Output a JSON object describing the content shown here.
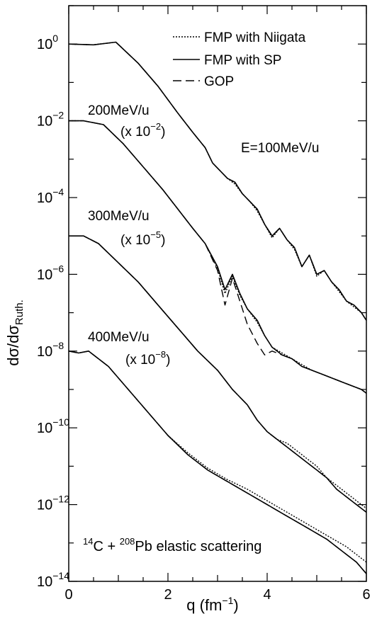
{
  "chart_data": {
    "type": "line",
    "xlabel": "q (fm",
    "xlabel_sup": "−1",
    "xlabel_tail": ")",
    "ylabel_main": "dσ/dσ",
    "ylabel_sub": "Ruth.",
    "xlim": [
      0,
      6
    ],
    "ylim_exp": [
      -14,
      1
    ],
    "y_scale": "log",
    "x_ticks": [
      0,
      2,
      4,
      6
    ],
    "x_tick_labels": [
      "0",
      "2",
      "4",
      "6"
    ],
    "y_ticks_exp": [
      0,
      -2,
      -4,
      -6,
      -8,
      -10,
      -12,
      -14
    ],
    "y_tick_base": "10",
    "y_tick_sups": [
      "0",
      "−2",
      "−4",
      "−6",
      "−8",
      "−10",
      "−12",
      "−14"
    ],
    "legend": {
      "placement": "top-right",
      "entries": [
        {
          "label": "FMP with Niigata",
          "style": "dotted"
        },
        {
          "label": "FMP with SP",
          "style": "solid"
        },
        {
          "label": "GOP",
          "style": "dashed"
        }
      ]
    },
    "annotations": {
      "energy_main": "E=100MeV/u",
      "title_a": "14",
      "title_b": "C + ",
      "title_c": "208",
      "title_d": "Pb elastic scattering",
      "curve_labels": [
        {
          "energy": "200MeV/u",
          "scale_pre": "(x 10",
          "scale_sup": "−2",
          "scale_post": ")"
        },
        {
          "energy": "300MeV/u",
          "scale_pre": "(x 10",
          "scale_sup": "−5",
          "scale_post": ")"
        },
        {
          "energy": "400MeV/u",
          "scale_pre": "(x 10",
          "scale_sup": "−8",
          "scale_post": ")"
        }
      ]
    },
    "series": [
      {
        "energy": "100MeV/u",
        "x": [
          0,
          0.5,
          0.95,
          1.4,
          1.8,
          2.2,
          2.5,
          2.75,
          2.9,
          3.05,
          3.2,
          3.35,
          3.5,
          3.65,
          3.8,
          3.95,
          4.1,
          4.25,
          4.4,
          4.55,
          4.7,
          4.85,
          5.0,
          5.15,
          5.3,
          5.45,
          5.6,
          5.75,
          5.9,
          6.0
        ],
        "solid": [
          0,
          -0.02,
          0.05,
          -0.5,
          -1.1,
          -1.8,
          -2.3,
          -2.7,
          -3.1,
          -3.3,
          -3.5,
          -3.6,
          -3.9,
          -4.1,
          -4.3,
          -4.7,
          -5.0,
          -4.8,
          -5.1,
          -5.3,
          -5.8,
          -5.5,
          -6.0,
          -5.9,
          -6.2,
          -6.4,
          -6.7,
          -6.8,
          -7.0,
          -7.2
        ],
        "dotted": [
          0,
          -0.02,
          0.05,
          -0.5,
          -1.1,
          -1.8,
          -2.3,
          -2.7,
          -3.1,
          -3.3,
          -3.5,
          -3.65,
          -3.9,
          -4.1,
          -4.35,
          -4.7,
          -5.05,
          -4.8,
          -5.1,
          -5.35,
          -5.8,
          -5.5,
          -6.05,
          -5.9,
          -6.2,
          -6.45,
          -6.7,
          -6.85,
          -7.0,
          -7.2
        ],
        "dashed": [
          0,
          -0.02,
          0.05,
          -0.5,
          -1.1,
          -1.8,
          -2.3,
          -2.7,
          -3.1,
          -3.3,
          -3.5,
          -3.6,
          -3.9,
          -4.1,
          -4.3,
          -4.7,
          -5.0,
          -4.8,
          -5.1,
          -5.3,
          -5.8,
          -5.5,
          -6.0,
          -5.9,
          -6.2,
          -6.4,
          -6.7,
          -6.8,
          -7.0,
          -7.2
        ]
      },
      {
        "energy": "200MeV/u",
        "x": [
          0,
          0.3,
          0.7,
          1.1,
          1.5,
          1.9,
          2.2,
          2.5,
          2.75,
          3.0,
          3.15,
          3.3,
          3.45,
          3.6,
          3.8,
          3.95,
          4.1,
          4.3,
          4.5,
          4.7,
          4.9,
          5.1,
          5.3,
          5.5,
          5.7,
          5.9,
          6.0
        ],
        "solid": [
          -2.0,
          -2.0,
          -2.1,
          -2.6,
          -3.2,
          -3.8,
          -4.3,
          -4.8,
          -5.2,
          -5.8,
          -6.4,
          -6.0,
          -6.5,
          -6.9,
          -7.2,
          -7.6,
          -7.9,
          -8.1,
          -8.2,
          -8.4,
          -8.5,
          -8.6,
          -8.7,
          -8.8,
          -8.9,
          -9.0,
          -9.1
        ],
        "dotted": [
          -2.0,
          -2.0,
          -2.1,
          -2.6,
          -3.2,
          -3.8,
          -4.3,
          -4.8,
          -5.2,
          -5.85,
          -6.5,
          -6.05,
          -6.55,
          -6.9,
          -7.25,
          -7.6,
          -7.9,
          -8.05,
          -8.2,
          -8.35,
          -8.5,
          -8.6,
          -8.7,
          -8.8,
          -8.9,
          -9.0,
          -9.1
        ],
        "dashed": [
          -2.0,
          -2.0,
          -2.1,
          -2.6,
          -3.2,
          -3.8,
          -4.3,
          -4.8,
          -5.2,
          -5.9,
          -6.8,
          -6.1,
          -6.7,
          -7.3,
          -7.8,
          -8.1,
          -8.0,
          -8.1,
          -8.2,
          -8.4,
          -8.5,
          -8.6,
          -8.7,
          -8.8,
          -8.9,
          -9.0,
          -9.1
        ]
      },
      {
        "energy": "300MeV/u",
        "x": [
          0,
          0.3,
          0.6,
          1.0,
          1.4,
          1.8,
          2.2,
          2.6,
          3.0,
          3.3,
          3.6,
          3.8,
          4.0,
          4.2,
          4.4,
          4.6,
          4.8,
          5.0,
          5.2,
          5.4,
          5.6,
          5.8,
          6.0
        ],
        "solid": [
          -5.0,
          -5.0,
          -5.2,
          -5.7,
          -6.2,
          -6.8,
          -7.4,
          -8.0,
          -8.5,
          -9.0,
          -9.4,
          -9.8,
          -10.1,
          -10.3,
          -10.5,
          -10.7,
          -10.9,
          -11.1,
          -11.3,
          -11.6,
          -11.8,
          -12.0,
          -12.2
        ],
        "dotted": [
          -5.0,
          -5.0,
          -5.2,
          -5.7,
          -6.2,
          -6.8,
          -7.4,
          -8.0,
          -8.5,
          -9.0,
          -9.4,
          -9.8,
          -10.1,
          -10.3,
          -10.4,
          -10.6,
          -10.8,
          -11.0,
          -11.3,
          -11.5,
          -11.7,
          -11.9,
          -12.1
        ],
        "dashed": [
          -5.0,
          -5.0,
          -5.2,
          -5.7,
          -6.2,
          -6.8,
          -7.4,
          -8.0,
          -8.5,
          -9.0,
          -9.4,
          -9.8,
          -10.1,
          -10.3,
          -10.5,
          -10.7,
          -10.9,
          -11.1,
          -11.3,
          -11.6,
          -11.8,
          -12.0,
          -12.2
        ]
      },
      {
        "energy": "400MeV/u",
        "x": [
          0,
          0.2,
          0.4,
          0.8,
          1.2,
          1.6,
          2.0,
          2.4,
          2.8,
          3.2,
          3.6,
          4.0,
          4.4,
          4.8,
          5.2,
          5.6,
          5.8,
          6.0
        ],
        "solid": [
          -8.0,
          -8.05,
          -8.0,
          -8.4,
          -9.0,
          -9.6,
          -10.2,
          -10.7,
          -11.1,
          -11.4,
          -11.7,
          -12.0,
          -12.3,
          -12.6,
          -12.9,
          -13.3,
          -13.5,
          -13.8
        ],
        "dotted": [
          -8.0,
          -8.05,
          -8.0,
          -8.4,
          -9.0,
          -9.6,
          -10.2,
          -10.65,
          -11.05,
          -11.35,
          -11.6,
          -11.9,
          -12.2,
          -12.5,
          -12.8,
          -13.1,
          -13.3,
          -13.5
        ],
        "dashed": [
          -8.0,
          -8.05,
          -8.0,
          -8.4,
          -9.0,
          -9.6,
          -10.2,
          -10.7,
          -11.1,
          -11.4,
          -11.7,
          -12.0,
          -12.3,
          -12.6,
          -12.9,
          -13.3,
          -13.5,
          -13.8
        ]
      }
    ]
  }
}
